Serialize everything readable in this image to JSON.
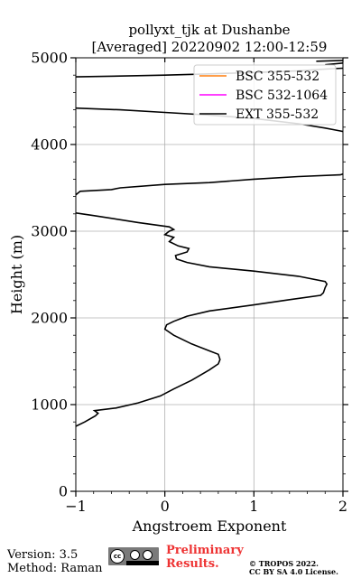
{
  "chart_data": {
    "type": "line",
    "title": "pollyxt_tjk at Dushanbe",
    "subtitle": "[Averaged] 20220902 12:00-12:59",
    "xlabel": "Angstroem Exponent",
    "ylabel": "Height (m)",
    "xlim": [
      -1,
      2
    ],
    "ylim": [
      0,
      5000
    ],
    "xticks": [
      "−1",
      "0",
      "1",
      "2"
    ],
    "yticks": [
      "0",
      "1000",
      "2000",
      "3000",
      "4000",
      "5000"
    ],
    "grid": true,
    "legend_position": "top-right",
    "series": [
      {
        "name": "BSC 355-532",
        "color": "#ff7f0e",
        "points": []
      },
      {
        "name": "BSC 532-1064",
        "color": "#ff00ff",
        "points": []
      },
      {
        "name": "EXT 355-532",
        "color": "#000000",
        "points": [
          [
            -1.0,
            750
          ],
          [
            -0.9,
            800
          ],
          [
            -0.78,
            870
          ],
          [
            -0.75,
            900
          ],
          [
            -0.79,
            930
          ],
          [
            -0.55,
            960
          ],
          [
            -0.3,
            1020
          ],
          [
            -0.05,
            1100
          ],
          [
            0.1,
            1180
          ],
          [
            0.3,
            1280
          ],
          [
            0.5,
            1400
          ],
          [
            0.6,
            1470
          ],
          [
            0.62,
            1520
          ],
          [
            0.6,
            1580
          ],
          [
            0.5,
            1620
          ],
          [
            0.3,
            1700
          ],
          [
            0.1,
            1800
          ],
          [
            0.0,
            1870
          ],
          [
            0.02,
            1920
          ],
          [
            0.1,
            1960
          ],
          [
            0.25,
            2020
          ],
          [
            0.5,
            2080
          ],
          [
            1.0,
            2150
          ],
          [
            1.4,
            2210
          ],
          [
            1.75,
            2260
          ],
          [
            1.78,
            2290
          ],
          [
            1.8,
            2350
          ],
          [
            1.82,
            2390
          ],
          [
            1.8,
            2420
          ],
          [
            1.5,
            2480
          ],
          [
            1.0,
            2540
          ],
          [
            0.5,
            2590
          ],
          [
            0.25,
            2640
          ],
          [
            0.13,
            2680
          ],
          [
            0.12,
            2720
          ],
          [
            0.25,
            2760
          ],
          [
            0.27,
            2800
          ],
          [
            0.15,
            2830
          ],
          [
            0.05,
            2880
          ],
          [
            0.1,
            2930
          ],
          [
            0.0,
            2960
          ],
          [
            0.05,
            3000
          ],
          [
            0.1,
            3020
          ],
          [
            0.05,
            3050
          ],
          [
            -0.3,
            3100
          ],
          [
            -0.8,
            3180
          ],
          [
            -1.0,
            3210
          ],
          [
            null,
            null
          ],
          [
            -1.0,
            3420
          ],
          [
            -0.95,
            3460
          ],
          [
            -0.6,
            3480
          ],
          [
            -0.5,
            3500
          ],
          [
            0.0,
            3540
          ],
          [
            0.5,
            3560
          ],
          [
            1.0,
            3600
          ],
          [
            1.5,
            3630
          ],
          [
            1.97,
            3650
          ],
          [
            2.0,
            3660
          ],
          [
            null,
            null
          ],
          [
            -1.0,
            4420
          ],
          [
            -0.5,
            4400
          ],
          [
            0.0,
            4370
          ],
          [
            0.5,
            4340
          ],
          [
            1.0,
            4300
          ],
          [
            1.5,
            4240
          ],
          [
            1.8,
            4190
          ],
          [
            1.95,
            4160
          ],
          [
            2.0,
            4150
          ],
          [
            null,
            null
          ],
          [
            -1.0,
            4780
          ],
          [
            -0.5,
            4790
          ],
          [
            0.0,
            4800
          ],
          [
            0.5,
            4815
          ],
          [
            1.0,
            4830
          ],
          [
            1.5,
            4850
          ],
          [
            1.8,
            4870
          ],
          [
            2.0,
            4880
          ],
          [
            null,
            null
          ],
          [
            1.8,
            4920
          ],
          [
            2.0,
            4940
          ],
          [
            null,
            null
          ],
          [
            1.7,
            4960
          ],
          [
            2.0,
            4970
          ]
        ]
      }
    ]
  },
  "footer": {
    "version": "Version: 3.5",
    "method": "Method: Raman",
    "license_badge": "cc",
    "preliminary_line1": "Preliminary",
    "preliminary_line2": "Results.",
    "copyright_line1": "© TROPOS 2022.",
    "copyright_line2": "CC BY SA 4.0 License."
  },
  "colors": {
    "grid": "#b0b0b0",
    "axes": "#000000",
    "preliminary": "#ee3333"
  }
}
